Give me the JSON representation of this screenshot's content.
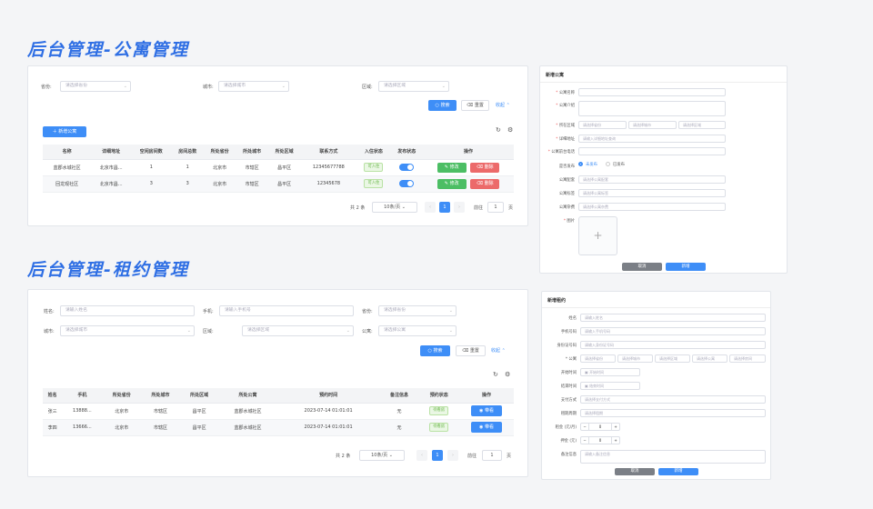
{
  "titles": {
    "apartment": "后台管理-公寓管理",
    "lease": "后台管理-租约管理"
  },
  "apt": {
    "filters": [
      {
        "label": "省份:",
        "placeholder": "请选择省份"
      },
      {
        "label": "城市:",
        "placeholder": "请选择城市"
      },
      {
        "label": "区域:",
        "placeholder": "请选择区域"
      }
    ],
    "search_label": "搜索",
    "reset_label": "重置",
    "collapse_label": "收起",
    "add_label": "新增公寓",
    "columns": [
      "名称",
      "详细地址",
      "空闲房间数",
      "房间总数",
      "所处省份",
      "所处城市",
      "所处区域",
      "联系方式",
      "入住状态",
      "发布状态",
      "操作"
    ],
    "rows": [
      [
        "蓝郡水城社区",
        "北京市昌...",
        "1",
        "1",
        "北京市",
        "市辖区",
        "昌平区",
        "12345677788",
        "可入住"
      ],
      [
        "回龙观社区",
        "北京市昌...",
        "3",
        "3",
        "北京市",
        "市辖区",
        "昌平区",
        "12345678",
        "可入住"
      ]
    ],
    "edit_label": "修改",
    "delete_label": "删除",
    "total": "共 2 条",
    "page_size": "10条/页",
    "page": "1",
    "goto": "前往",
    "page_unit": "页"
  },
  "apt_form": {
    "title": "新增公寓",
    "name_label": "公寓名称",
    "intro_label": "公寓介绍",
    "location_label": "所在区域",
    "loc_placeholders": [
      "请选择省份",
      "请选择城市",
      "请选择区域"
    ],
    "address_label": "详细地址",
    "address_placeholder": "请输入详细地址查询",
    "phone_label": "公寓前台电话",
    "publish_label": "是否发布",
    "publish_yes": "未发布",
    "publish_no": "已发布",
    "facility_label": "公寓配套",
    "facility_placeholder": "请选择公寓配套",
    "tag_label": "公寓标签",
    "tag_placeholder": "请选择公寓标签",
    "fee_label": "公寓杂费",
    "fee_placeholder": "请选择公寓杂费",
    "image_label": "图片",
    "cancel_label": "取消",
    "confirm_label": "新增"
  },
  "lease": {
    "filters": [
      {
        "label": "姓名:",
        "placeholder": "请输入姓名"
      },
      {
        "label": "手机:",
        "placeholder": "请输入手机号"
      },
      {
        "label": "省份:",
        "placeholder": "请选择省份"
      },
      {
        "label": "城市:",
        "placeholder": "请选择城市"
      },
      {
        "label": "区域:",
        "placeholder": "请选择区域"
      },
      {
        "label": "公寓:",
        "placeholder": "请选择公寓"
      }
    ],
    "search_label": "搜索",
    "reset_label": "重置",
    "collapse_label": "收起",
    "columns": [
      "姓名",
      "手机",
      "所处省份",
      "所处城市",
      "所处区域",
      "所处公寓",
      "预约时间",
      "备注信息",
      "预约状态",
      "操作"
    ],
    "rows": [
      [
        "张三",
        "13888...",
        "北京市",
        "市辖区",
        "昌平区",
        "蓝郡水城社区",
        "2023-07-14 01:01:01",
        "无",
        "待看房"
      ],
      [
        "李四",
        "13666...",
        "北京市",
        "市辖区",
        "昌平区",
        "蓝郡水城社区",
        "2023-07-14 01:01:01",
        "无",
        "待看房"
      ]
    ],
    "view_label": "带看",
    "total": "共 2 条",
    "page_size": "10条/页",
    "page": "1",
    "goto": "前往",
    "page_unit": "页"
  },
  "lease_form": {
    "title": "新增租约",
    "fields": [
      {
        "label": "姓名",
        "placeholder": "请输入姓名"
      },
      {
        "label": "手机号码",
        "placeholder": "请输入手机号码"
      },
      {
        "label": "身份证号码",
        "placeholder": "请输入身份证号码"
      }
    ],
    "apt_label": "* 公寓",
    "apt_selects": [
      "请选择省份",
      "请选择城市",
      "请选择区域",
      "请选择公寓",
      "请选择房间"
    ],
    "start_label": "开始时间",
    "start_placeholder": "开始时间",
    "end_label": "结束时间",
    "end_placeholder": "结束时间",
    "pay_label": "支付方式",
    "pay_placeholder": "请选择支付方式",
    "term_label": "租期周期",
    "term_placeholder": "请选择租期",
    "rent_label": "租金 (元/月)",
    "rent_value": "0",
    "deposit_label": "押金 (元)",
    "deposit_value": "0",
    "remark_label": "备注信息",
    "remark_placeholder": "请输入备注信息",
    "cancel_label": "取消",
    "confirm_label": "新增"
  }
}
